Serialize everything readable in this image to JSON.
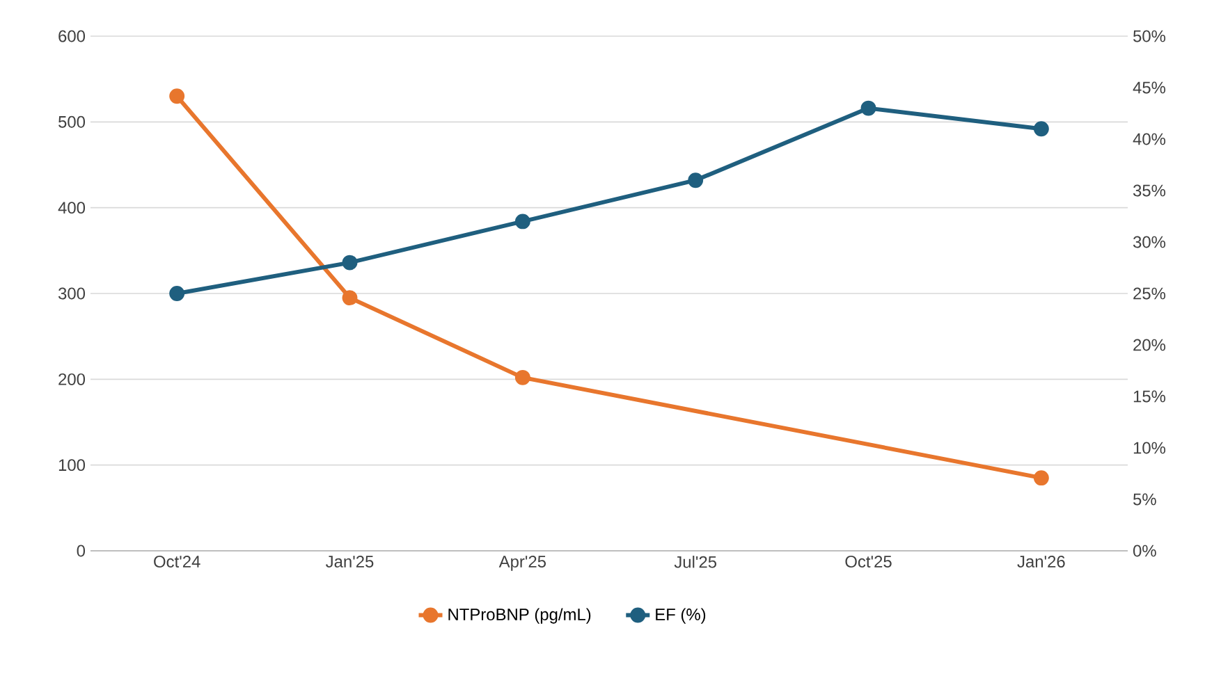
{
  "chart_data": {
    "type": "line",
    "categories": [
      "Oct'24",
      "Jan'25",
      "Apr'25",
      "Jul'25",
      "Oct'25",
      "Jan'26"
    ],
    "series": [
      {
        "name": "NTProBNP (pg/mL)",
        "color": "#e8762d",
        "values": [
          530,
          295,
          202,
          null,
          null,
          85
        ]
      },
      {
        "name": "EF (%)",
        "color": "#1f5f7f",
        "axis": "y2",
        "values": [
          25,
          28,
          32,
          36,
          43,
          41
        ]
      }
    ],
    "ylim": [
      0,
      600
    ],
    "yticks": [
      0,
      100,
      200,
      300,
      400,
      500,
      600
    ],
    "y2lim": [
      0,
      50
    ],
    "y2ticks": [
      {
        "value": 0,
        "label": "0%"
      },
      {
        "value": 5,
        "label": "5%"
      },
      {
        "value": 10,
        "label": "10%"
      },
      {
        "value": 15,
        "label": "15%"
      },
      {
        "value": 20,
        "label": "20%"
      },
      {
        "value": 25,
        "label": "25%"
      },
      {
        "value": 30,
        "label": "30%"
      },
      {
        "value": 35,
        "label": "35%"
      },
      {
        "value": 40,
        "label": "40%"
      },
      {
        "value": 45,
        "label": "45%"
      },
      {
        "value": 50,
        "label": "50%"
      }
    ],
    "grid": "y",
    "legend": "bottom",
    "marker": "circle",
    "line_style": "solid"
  }
}
